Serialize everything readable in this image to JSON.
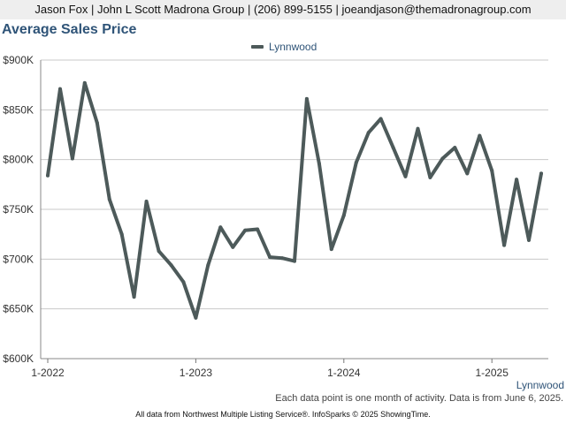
{
  "header": {
    "text": "Jason Fox | John L Scott Madrona Group | (206) 899-5155 | joeandjason@themadronagroup.com"
  },
  "footer": {
    "series_label": "Lynnwood",
    "note": "Each data point is one month of activity. Data is from June 6, 2025.",
    "source": "All data from Northwest Multiple Listing Service®. InfoSparks © 2025 ShowingTime."
  },
  "colors": {
    "line": "#4d5a5a",
    "title": "#2f5478",
    "grid": "#c8c8c8"
  },
  "chart_data": {
    "type": "line",
    "title": "Average Sales Price",
    "legend_position": "top-center",
    "grid": true,
    "x_ticks": [
      "1-2022",
      "1-2023",
      "1-2024",
      "1-2025"
    ],
    "y_ticks": [
      "$600K",
      "$650K",
      "$700K",
      "$750K",
      "$800K",
      "$850K",
      "$900K"
    ],
    "ylim": [
      600000,
      900000
    ],
    "x": [
      "2022-01",
      "2022-02",
      "2022-03",
      "2022-04",
      "2022-05",
      "2022-06",
      "2022-07",
      "2022-08",
      "2022-09",
      "2022-10",
      "2022-11",
      "2022-12",
      "2023-01",
      "2023-02",
      "2023-03",
      "2023-04",
      "2023-05",
      "2023-06",
      "2023-07",
      "2023-08",
      "2023-09",
      "2023-10",
      "2023-11",
      "2023-12",
      "2024-01",
      "2024-02",
      "2024-03",
      "2024-04",
      "2024-05",
      "2024-06",
      "2024-07",
      "2024-08",
      "2024-09",
      "2024-10",
      "2024-11",
      "2024-12",
      "2025-01",
      "2025-02",
      "2025-03",
      "2025-04",
      "2025-05"
    ],
    "series": [
      {
        "name": "Lynnwood",
        "values": [
          784000,
          871000,
          801000,
          877000,
          837000,
          760000,
          725000,
          662000,
          758000,
          708000,
          694000,
          677000,
          641000,
          694000,
          732000,
          712000,
          729000,
          730000,
          702000,
          701000,
          698000,
          861000,
          796000,
          710000,
          744000,
          797000,
          827000,
          841000,
          812000,
          783000,
          831000,
          782000,
          801000,
          812000,
          786000,
          824000,
          789000,
          714000,
          780000,
          719000,
          786000
        ]
      }
    ]
  }
}
